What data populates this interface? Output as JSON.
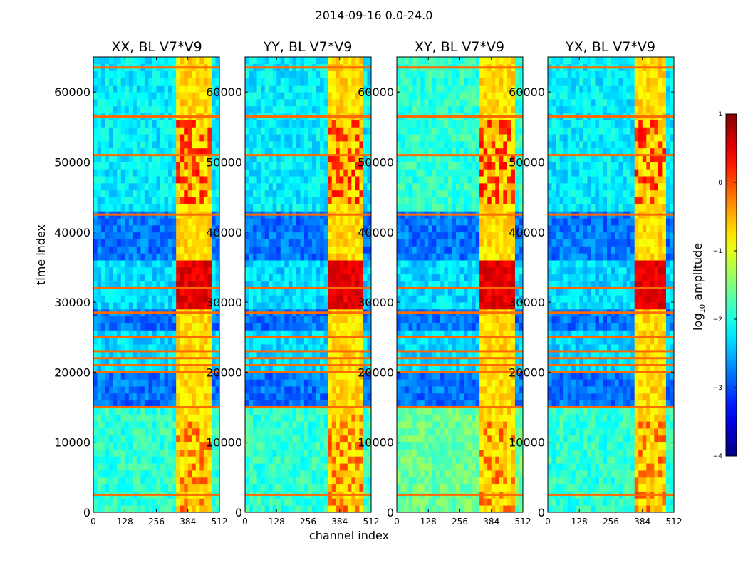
{
  "chart_data": {
    "type": "heatmap",
    "suptitle": "2014-09-16 0.0-24.0",
    "xlabel": "channel index",
    "ylabel": "time index",
    "xlim": [
      0,
      512
    ],
    "ylim": [
      0,
      65000
    ],
    "xticks": [
      0,
      128,
      256,
      384,
      512
    ],
    "yticks": [
      0,
      10000,
      20000,
      30000,
      40000,
      50000,
      60000
    ],
    "panels": [
      {
        "title": "XX, BL V7*V9"
      },
      {
        "title": "YY, BL V7*V9"
      },
      {
        "title": "XY, BL V7*V9"
      },
      {
        "title": "YX, BL V7*V9"
      }
    ],
    "colorbar": {
      "label_main": "log",
      "label_sub": "10",
      "label_rest": " amplitude",
      "range": [
        -4,
        1
      ],
      "ticks": [
        1,
        0,
        -1,
        -2,
        -3,
        -4
      ],
      "tick_labels": [
        "1",
        "0",
        "−1",
        "−2",
        "−3",
        "−4"
      ],
      "colormap": "jet"
    },
    "bright_band_channels": [
      330,
      480
    ],
    "horizontal_flag_rows": [
      2500,
      15000,
      20000,
      21000,
      22000,
      23000,
      25000,
      28500,
      32000,
      42500,
      51000,
      56500,
      63500
    ]
  }
}
